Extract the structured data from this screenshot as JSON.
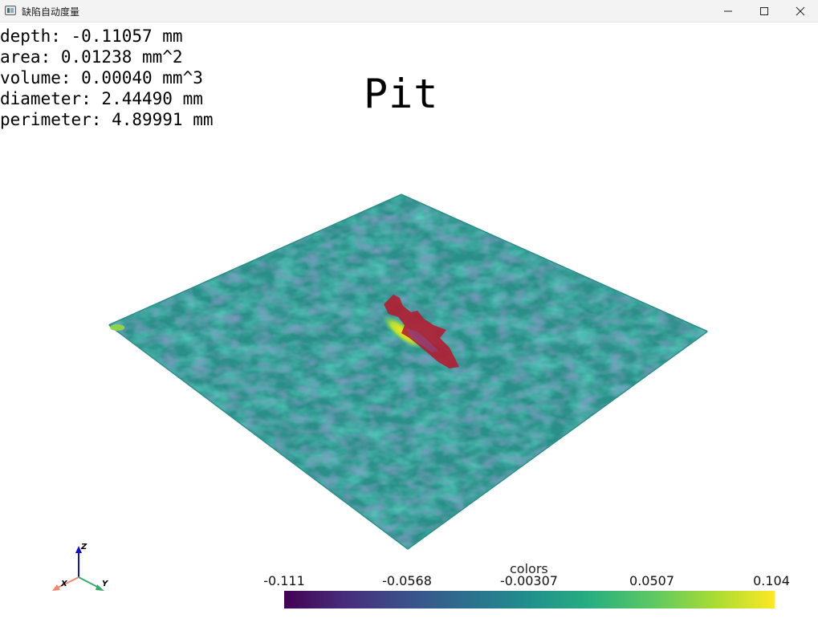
{
  "window": {
    "title": "缺陷自动度量"
  },
  "measurements": [
    "depth: -0.11057 mm",
    "area: 0.01238 mm^2",
    "volume: 0.00040 mm^3",
    "diameter: 2.44490 mm",
    "perimeter: 4.89991 mm"
  ],
  "defect_type": "Pit",
  "axes": {
    "x": "X",
    "y": "Y",
    "z": "Z"
  },
  "colorbar": {
    "title": "colors",
    "labels": [
      "-0.111",
      "-0.0568",
      "-0.00307",
      "0.0507",
      "0.104"
    ],
    "colormap": "viridis"
  },
  "colors": {
    "surface": "#2a8f88",
    "defect": "#b5192e",
    "highlight": "#e6e23a"
  }
}
